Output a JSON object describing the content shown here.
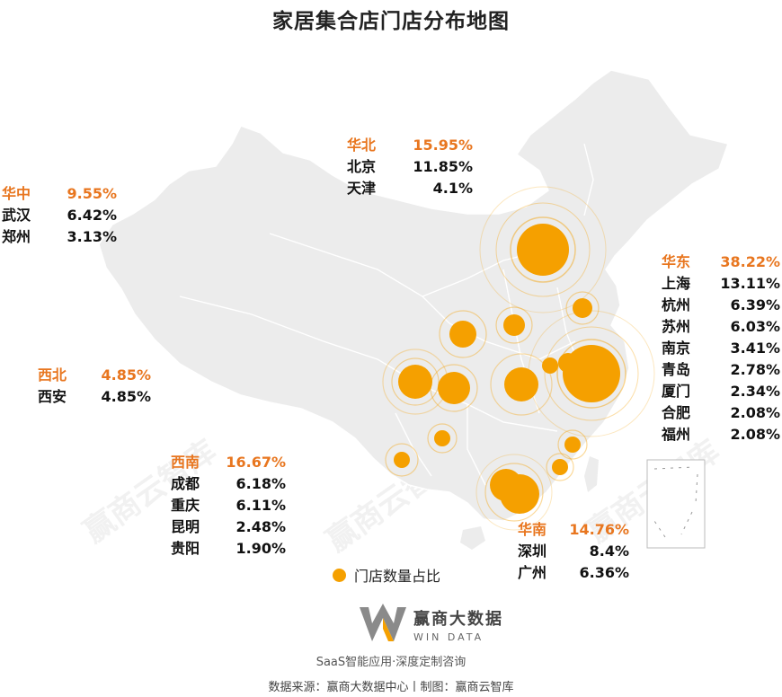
{
  "title": "家居集合店门店分布地图",
  "watermark": "赢商云智库",
  "legend_label": "门店数量占比",
  "colors": {
    "accent": "#e8761f",
    "bubble": "#f5a000",
    "land": "#ececec"
  },
  "regions": {
    "huabei": {
      "name": "华北",
      "share": "15.95%",
      "cities": [
        {
          "city": "北京",
          "share": "11.85%"
        },
        {
          "city": "天津",
          "share": "4.1%"
        }
      ]
    },
    "huazhong": {
      "name": "华中",
      "share": "9.55%",
      "cities": [
        {
          "city": "武汉",
          "share": "6.42%"
        },
        {
          "city": "郑州",
          "share": "3.13%"
        }
      ]
    },
    "huadong": {
      "name": "华东",
      "share": "38.22%",
      "cities": [
        {
          "city": "上海",
          "share": "13.11%"
        },
        {
          "city": "杭州",
          "share": "6.39%"
        },
        {
          "city": "苏州",
          "share": "6.03%"
        },
        {
          "city": "南京",
          "share": "3.41%"
        },
        {
          "city": "青岛",
          "share": "2.78%"
        },
        {
          "city": "厦门",
          "share": "2.34%"
        },
        {
          "city": "合肥",
          "share": "2.08%"
        },
        {
          "city": "福州",
          "share": "2.08%"
        }
      ]
    },
    "xibei": {
      "name": "西北",
      "share": "4.85%",
      "cities": [
        {
          "city": "西安",
          "share": "4.85%"
        }
      ]
    },
    "xinan": {
      "name": "西南",
      "share": "16.67%",
      "cities": [
        {
          "city": "成都",
          "share": "6.18%"
        },
        {
          "city": "重庆",
          "share": "6.11%"
        },
        {
          "city": "昆明",
          "share": "2.48%"
        },
        {
          "city": "贵阳",
          "share": "1.90%"
        }
      ]
    },
    "huanan": {
      "name": "华南",
      "share": "14.76%",
      "cities": [
        {
          "city": "深圳",
          "share": "8.4%"
        },
        {
          "city": "广州",
          "share": "6.36%"
        }
      ]
    }
  },
  "brand": {
    "name_cn": "赢商大数据",
    "name_en": "WIN DATA",
    "slogan": "SaaS智能应用·深度定制咨询"
  },
  "source_line": "数据来源：赢商大数据中心丨制图：赢商云智库"
}
